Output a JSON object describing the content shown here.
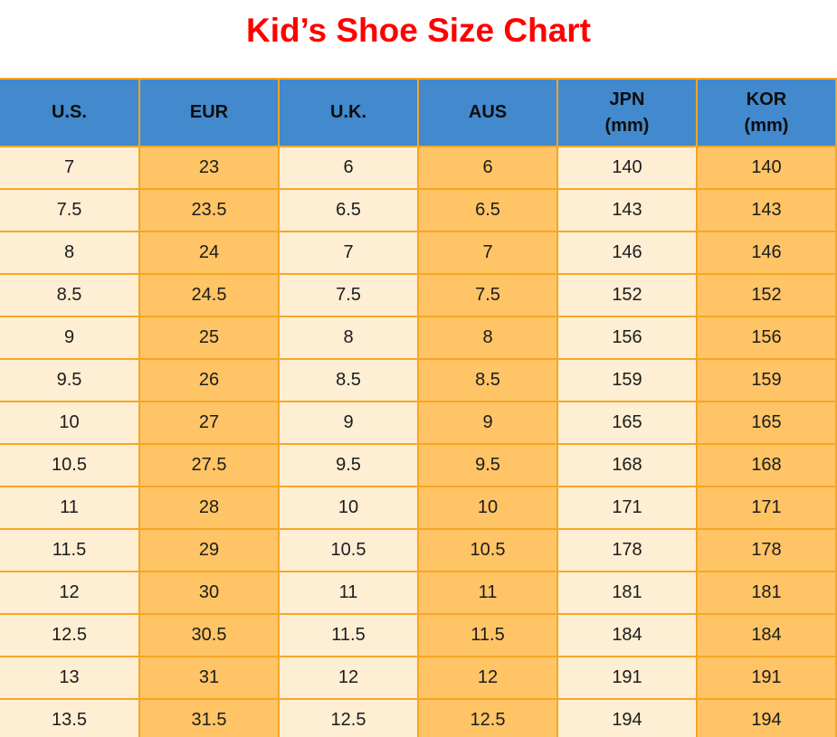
{
  "title": {
    "text": "Kid’s Shoe Size Chart",
    "color": "#ff0000"
  },
  "chart_data": {
    "type": "table",
    "title": "Kid’s Shoe Size Chart",
    "columns": [
      {
        "label": "U.S.",
        "sub": ""
      },
      {
        "label": "EUR",
        "sub": ""
      },
      {
        "label": "U.K.",
        "sub": ""
      },
      {
        "label": "AUS",
        "sub": ""
      },
      {
        "label": "JPN",
        "sub": "(mm)"
      },
      {
        "label": "KOR",
        "sub": "(mm)"
      }
    ],
    "rows": [
      [
        "7",
        "23",
        "6",
        "6",
        "140",
        "140"
      ],
      [
        "7.5",
        "23.5",
        "6.5",
        "6.5",
        "143",
        "143"
      ],
      [
        "8",
        "24",
        "7",
        "7",
        "146",
        "146"
      ],
      [
        "8.5",
        "24.5",
        "7.5",
        "7.5",
        "152",
        "152"
      ],
      [
        "9",
        "25",
        "8",
        "8",
        "156",
        "156"
      ],
      [
        "9.5",
        "26",
        "8.5",
        "8.5",
        "159",
        "159"
      ],
      [
        "10",
        "27",
        "9",
        "9",
        "165",
        "165"
      ],
      [
        "10.5",
        "27.5",
        "9.5",
        "9.5",
        "168",
        "168"
      ],
      [
        "11",
        "28",
        "10",
        "10",
        "171",
        "171"
      ],
      [
        "11.5",
        "29",
        "10.5",
        "10.5",
        "178",
        "178"
      ],
      [
        "12",
        "30",
        "11",
        "11",
        "181",
        "181"
      ],
      [
        "12.5",
        "30.5",
        "11.5",
        "11.5",
        "184",
        "184"
      ],
      [
        "13",
        "31",
        "12",
        "12",
        "191",
        "191"
      ],
      [
        "13.5",
        "31.5",
        "12.5",
        "12.5",
        "194",
        "194"
      ]
    ],
    "colors": {
      "title_red": "#ff0000",
      "header_bg": "#4289cd",
      "column_light": "#feeed3",
      "column_orange": "#fec466",
      "grid_border": "#f6a623",
      "text": "#1c1c1c"
    },
    "layout": {
      "grid": "on",
      "header_position": "top"
    }
  }
}
